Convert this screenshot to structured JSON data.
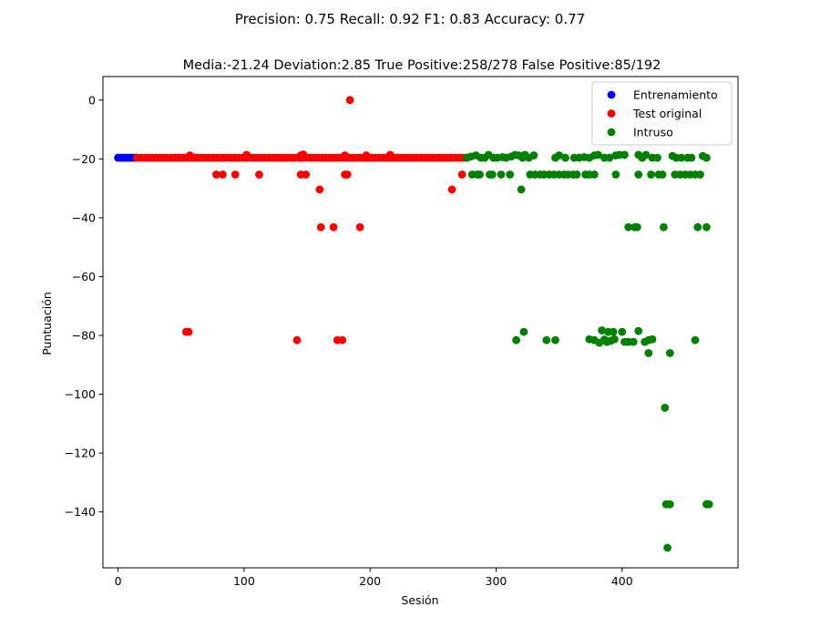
{
  "figure": {
    "suptitle": "Precision: 0.75 Recall: 0.92 F1: 0.83 Accuracy: 0.77"
  },
  "chart_data": {
    "type": "scatter",
    "title": "Media:-21.24 Deviation:2.85 True Positive:258/278 False Positive:85/192",
    "xlabel": "Sesión",
    "ylabel": "Puntuación",
    "xlim": [
      -12,
      492
    ],
    "ylim": [
      -159,
      8
    ],
    "x_ticks": [
      0,
      100,
      200,
      300,
      400
    ],
    "y_ticks": [
      0,
      -20,
      -40,
      -60,
      -80,
      -100,
      -120,
      -140
    ],
    "legend_position": "upper right",
    "grid": false,
    "series": [
      {
        "name": "Entrenamiento",
        "color": "#0000ff",
        "points": [
          [
            0,
            -19.6
          ],
          [
            2,
            -19.6
          ],
          [
            4,
            -19.6
          ],
          [
            6,
            -19.6
          ],
          [
            8,
            -19.6
          ],
          [
            10,
            -19.6
          ],
          [
            12,
            -19.6
          ],
          [
            14,
            -19.6
          ]
        ]
      },
      {
        "name": "Test original",
        "color": "#ff0000",
        "points": [
          [
            15,
            -19.6
          ],
          [
            18,
            -19.6
          ],
          [
            21,
            -19.6
          ],
          [
            24,
            -19.6
          ],
          [
            27,
            -19.6
          ],
          [
            30,
            -19.6
          ],
          [
            33,
            -19.6
          ],
          [
            36,
            -19.6
          ],
          [
            39,
            -19.6
          ],
          [
            42,
            -19.6
          ],
          [
            45,
            -19.6
          ],
          [
            48,
            -19.6
          ],
          [
            51,
            -19.6
          ],
          [
            54,
            -19.6
          ],
          [
            57,
            -19.6
          ],
          [
            60,
            -19.6
          ],
          [
            63,
            -19.6
          ],
          [
            66,
            -19.6
          ],
          [
            69,
            -19.6
          ],
          [
            72,
            -19.6
          ],
          [
            75,
            -19.6
          ],
          [
            78,
            -19.6
          ],
          [
            81,
            -19.6
          ],
          [
            84,
            -19.6
          ],
          [
            87,
            -19.6
          ],
          [
            90,
            -19.6
          ],
          [
            93,
            -19.6
          ],
          [
            96,
            -19.6
          ],
          [
            99,
            -19.6
          ],
          [
            102,
            -19.6
          ],
          [
            105,
            -19.6
          ],
          [
            108,
            -19.6
          ],
          [
            111,
            -19.6
          ],
          [
            114,
            -19.6
          ],
          [
            117,
            -19.6
          ],
          [
            120,
            -19.6
          ],
          [
            123,
            -19.6
          ],
          [
            126,
            -19.6
          ],
          [
            129,
            -19.6
          ],
          [
            132,
            -19.6
          ],
          [
            135,
            -19.6
          ],
          [
            138,
            -19.6
          ],
          [
            141,
            -19.6
          ],
          [
            144,
            -19.6
          ],
          [
            147,
            -19.6
          ],
          [
            150,
            -19.6
          ],
          [
            153,
            -19.6
          ],
          [
            156,
            -19.6
          ],
          [
            159,
            -19.6
          ],
          [
            162,
            -19.6
          ],
          [
            165,
            -19.6
          ],
          [
            168,
            -19.6
          ],
          [
            171,
            -19.6
          ],
          [
            174,
            -19.6
          ],
          [
            177,
            -19.6
          ],
          [
            180,
            -19.6
          ],
          [
            183,
            -19.6
          ],
          [
            186,
            -19.6
          ],
          [
            189,
            -19.6
          ],
          [
            192,
            -19.6
          ],
          [
            195,
            -19.6
          ],
          [
            198,
            -19.6
          ],
          [
            201,
            -19.6
          ],
          [
            204,
            -19.6
          ],
          [
            207,
            -19.6
          ],
          [
            210,
            -19.6
          ],
          [
            213,
            -19.6
          ],
          [
            216,
            -19.6
          ],
          [
            219,
            -19.6
          ],
          [
            222,
            -19.6
          ],
          [
            225,
            -19.6
          ],
          [
            228,
            -19.6
          ],
          [
            231,
            -19.6
          ],
          [
            234,
            -19.6
          ],
          [
            237,
            -19.6
          ],
          [
            240,
            -19.6
          ],
          [
            243,
            -19.6
          ],
          [
            246,
            -19.6
          ],
          [
            249,
            -19.6
          ],
          [
            252,
            -19.6
          ],
          [
            255,
            -19.6
          ],
          [
            258,
            -19.6
          ],
          [
            261,
            -19.6
          ],
          [
            264,
            -19.6
          ],
          [
            267,
            -19.6
          ],
          [
            270,
            -19.6
          ],
          [
            273,
            -19.6
          ],
          [
            276,
            -19.6
          ],
          [
            57,
            -18.8
          ],
          [
            102,
            -18.6
          ],
          [
            145,
            -18.8
          ],
          [
            147,
            -18.5
          ],
          [
            180,
            -18.8
          ],
          [
            197,
            -18.8
          ],
          [
            216,
            -18.6
          ],
          [
            78,
            -25.3
          ],
          [
            83,
            -25.3
          ],
          [
            93,
            -25.3
          ],
          [
            112,
            -25.3
          ],
          [
            145,
            -25.3
          ],
          [
            149,
            -25.3
          ],
          [
            180,
            -25.3
          ],
          [
            182,
            -25.3
          ],
          [
            273,
            -25.3
          ],
          [
            160,
            -30.4
          ],
          [
            265,
            -30.4
          ],
          [
            161,
            -43.2
          ],
          [
            171,
            -43.2
          ],
          [
            192,
            -43.2
          ],
          [
            54,
            -78.8
          ],
          [
            56,
            -78.8
          ],
          [
            142,
            -81.6
          ],
          [
            174,
            -81.6
          ],
          [
            178,
            -81.6
          ],
          [
            184,
            0
          ]
        ]
      },
      {
        "name": "Intruso",
        "color": "#008000",
        "points": [
          [
            277,
            -19.6
          ],
          [
            280,
            -19.2
          ],
          [
            284,
            -18.8
          ],
          [
            288,
            -19.6
          ],
          [
            291,
            -19.6
          ],
          [
            294,
            -18.6
          ],
          [
            298,
            -19.6
          ],
          [
            301,
            -19.6
          ],
          [
            305,
            -19.4
          ],
          [
            308,
            -19.6
          ],
          [
            312,
            -19.2
          ],
          [
            315,
            -18.6
          ],
          [
            318,
            -18.8
          ],
          [
            321,
            -19.6
          ],
          [
            323,
            -18.6
          ],
          [
            326,
            -19.6
          ],
          [
            330,
            -18.8
          ],
          [
            347,
            -19.6
          ],
          [
            350,
            -18.8
          ],
          [
            355,
            -19.6
          ],
          [
            362,
            -19.6
          ],
          [
            366,
            -19.6
          ],
          [
            370,
            -19.4
          ],
          [
            374,
            -19.6
          ],
          [
            378,
            -18.8
          ],
          [
            381,
            -18.6
          ],
          [
            386,
            -19.6
          ],
          [
            390,
            -19.6
          ],
          [
            395,
            -18.8
          ],
          [
            398,
            -18.6
          ],
          [
            402,
            -18.6
          ],
          [
            413,
            -18.6
          ],
          [
            416,
            -19.6
          ],
          [
            419,
            -18.6
          ],
          [
            424,
            -19.6
          ],
          [
            428,
            -19.6
          ],
          [
            440,
            -19.0
          ],
          [
            443,
            -19.6
          ],
          [
            447,
            -19.6
          ],
          [
            452,
            -19.6
          ],
          [
            455,
            -19.6
          ],
          [
            464,
            -19.0
          ],
          [
            467,
            -19.6
          ],
          [
            281,
            -25.3
          ],
          [
            285,
            -25.3
          ],
          [
            287,
            -25.3
          ],
          [
            295,
            -25.3
          ],
          [
            297,
            -25.3
          ],
          [
            304,
            -25.3
          ],
          [
            311,
            -25.3
          ],
          [
            327,
            -25.3
          ],
          [
            331,
            -25.3
          ],
          [
            335,
            -25.3
          ],
          [
            338,
            -25.3
          ],
          [
            342,
            -25.3
          ],
          [
            346,
            -25.3
          ],
          [
            350,
            -25.3
          ],
          [
            354,
            -25.3
          ],
          [
            357,
            -25.3
          ],
          [
            361,
            -25.3
          ],
          [
            364,
            -25.3
          ],
          [
            371,
            -25.3
          ],
          [
            374,
            -25.3
          ],
          [
            378,
            -25.3
          ],
          [
            395,
            -25.3
          ],
          [
            413,
            -25.3
          ],
          [
            423,
            -25.3
          ],
          [
            429,
            -25.3
          ],
          [
            432,
            -25.3
          ],
          [
            442,
            -25.3
          ],
          [
            446,
            -25.3
          ],
          [
            450,
            -25.3
          ],
          [
            454,
            -25.3
          ],
          [
            458,
            -25.3
          ],
          [
            462,
            -25.3
          ],
          [
            320,
            -30.4
          ],
          [
            405,
            -43.2
          ],
          [
            410,
            -43.2
          ],
          [
            412,
            -43.2
          ],
          [
            433,
            -43.2
          ],
          [
            460,
            -43.2
          ],
          [
            467,
            -43.2
          ],
          [
            322,
            -78.8
          ],
          [
            384,
            -78.3
          ],
          [
            389,
            -78.8
          ],
          [
            393,
            -78.8
          ],
          [
            400,
            -78.8
          ],
          [
            413,
            -78.5
          ],
          [
            316,
            -81.6
          ],
          [
            340,
            -81.6
          ],
          [
            347,
            -81.6
          ],
          [
            374,
            -81.3
          ],
          [
            378,
            -81.6
          ],
          [
            382,
            -82.5
          ],
          [
            386,
            -81.4
          ],
          [
            388,
            -82.2
          ],
          [
            391,
            -81.8
          ],
          [
            394,
            -81.3
          ],
          [
            402,
            -82.2
          ],
          [
            405,
            -82.2
          ],
          [
            409,
            -82.2
          ],
          [
            418,
            -82.2
          ],
          [
            421,
            -81.6
          ],
          [
            424,
            -81.3
          ],
          [
            458,
            -81.6
          ],
          [
            421,
            -86.0
          ],
          [
            438,
            -86.0
          ],
          [
            434,
            -104.6
          ],
          [
            435,
            -137.4
          ],
          [
            438,
            -137.4
          ],
          [
            467,
            -137.4
          ],
          [
            469,
            -137.4
          ],
          [
            436,
            -152.2
          ]
        ]
      }
    ]
  }
}
